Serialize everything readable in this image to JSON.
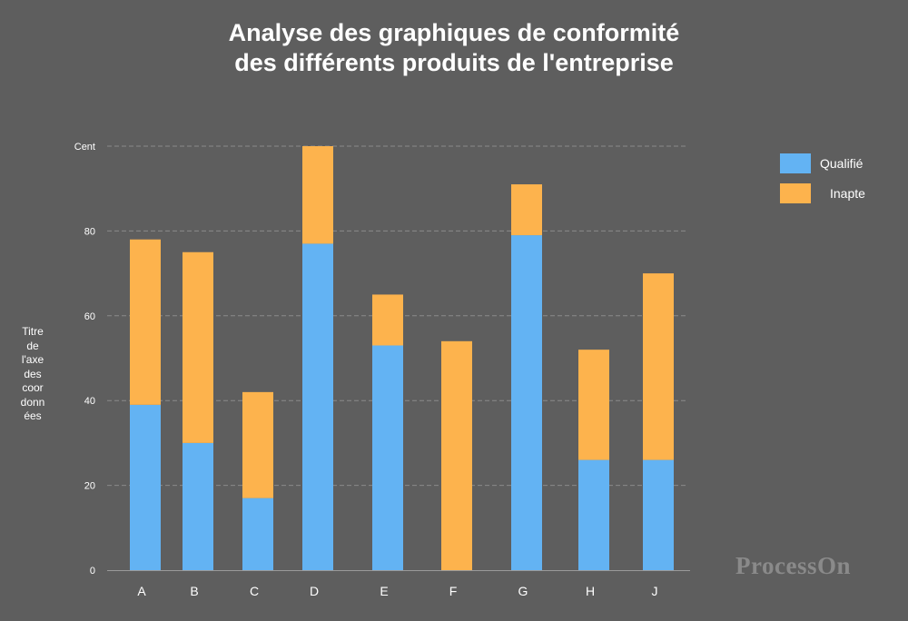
{
  "chart_data": {
    "type": "bar",
    "stacked": true,
    "title_line1": "Analyse des graphiques de conformité",
    "title_line2": "des différents produits de l'entreprise",
    "ylabel": "Titre\nde\nl'axe\ndes\ncoor\ndonn\nées",
    "xlabel": "",
    "categories": [
      "A",
      "B",
      "C",
      "D",
      "E",
      "F",
      "G",
      "H",
      "J"
    ],
    "series": [
      {
        "name": "Qualifié",
        "color": "#63b3f3",
        "values": [
          39,
          30,
          17,
          77,
          53,
          0,
          79,
          26,
          26
        ]
      },
      {
        "name": "Inapte",
        "color": "#fdb34d",
        "values": [
          39,
          45,
          25,
          23,
          12,
          54,
          12,
          26,
          44
        ]
      }
    ],
    "ylim": [
      0,
      100
    ],
    "yticks": [
      {
        "value": 0,
        "label": "0"
      },
      {
        "value": 20,
        "label": "20"
      },
      {
        "value": 40,
        "label": "40"
      },
      {
        "value": 60,
        "label": "60"
      },
      {
        "value": 80,
        "label": "80"
      },
      {
        "value": 100,
        "label": "Cent"
      }
    ],
    "grid": true,
    "legend_position": "top-right"
  },
  "watermark": "ProcessOn"
}
